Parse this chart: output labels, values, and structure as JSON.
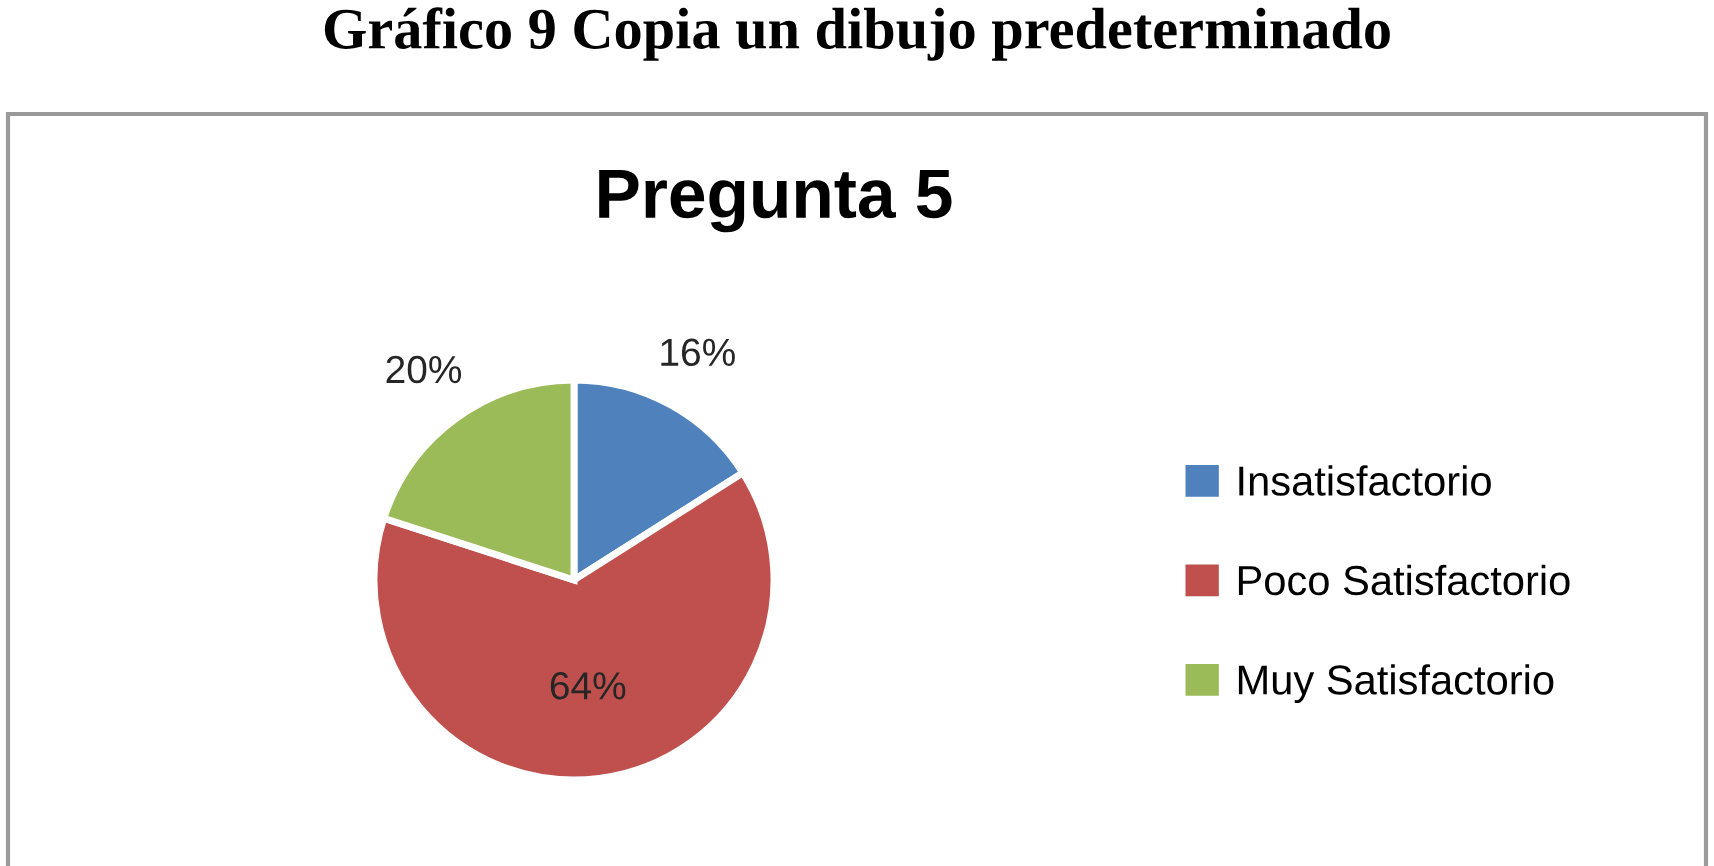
{
  "chart_data": {
    "type": "pie",
    "title": "Pregunta 5",
    "annotations": [
      "Gráfico 9 Copia un dibujo predeterminado"
    ],
    "categories": [
      "Insatisfactorio",
      "Poco Satisfactorio",
      "Muy Satisfactorio"
    ],
    "values": [
      16,
      64,
      20
    ],
    "colors": [
      "#4f81bd",
      "#c0504d",
      "#9bbb59"
    ],
    "value_labels": [
      "16%",
      "64%",
      "20%"
    ],
    "legend": "right"
  }
}
